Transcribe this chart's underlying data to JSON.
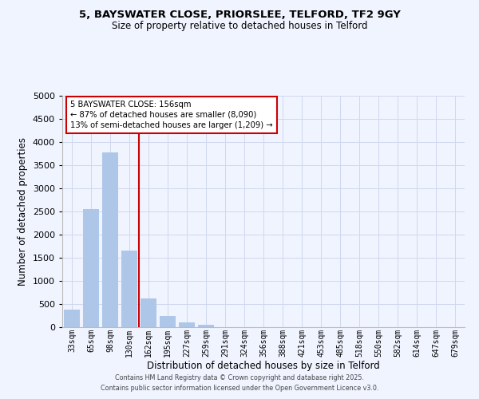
{
  "title_line1": "5, BAYSWATER CLOSE, PRIORSLEE, TELFORD, TF2 9GY",
  "title_line2": "Size of property relative to detached houses in Telford",
  "xlabel": "Distribution of detached houses by size in Telford",
  "ylabel": "Number of detached properties",
  "bar_labels": [
    "33sqm",
    "65sqm",
    "98sqm",
    "130sqm",
    "162sqm",
    "195sqm",
    "227sqm",
    "259sqm",
    "291sqm",
    "324sqm",
    "356sqm",
    "388sqm",
    "421sqm",
    "453sqm",
    "485sqm",
    "518sqm",
    "550sqm",
    "582sqm",
    "614sqm",
    "647sqm",
    "679sqm"
  ],
  "bar_values": [
    380,
    2550,
    3780,
    1650,
    620,
    250,
    100,
    55,
    0,
    0,
    0,
    0,
    0,
    0,
    0,
    0,
    0,
    0,
    0,
    0,
    0
  ],
  "bar_color": "#aec6e8",
  "vline_color": "#cc0000",
  "annotation_title": "5 BAYSWATER CLOSE: 156sqm",
  "annotation_line1": "← 87% of detached houses are smaller (8,090)",
  "annotation_line2": "13% of semi-detached houses are larger (1,209) →",
  "annotation_box_color": "#cc0000",
  "ylim": [
    0,
    5000
  ],
  "yticks": [
    0,
    500,
    1000,
    1500,
    2000,
    2500,
    3000,
    3500,
    4000,
    4500,
    5000
  ],
  "footer_line1": "Contains HM Land Registry data © Crown copyright and database right 2025.",
  "footer_line2": "Contains public sector information licensed under the Open Government Licence v3.0.",
  "bg_color": "#f0f4ff",
  "grid_color": "#d0d8ee"
}
